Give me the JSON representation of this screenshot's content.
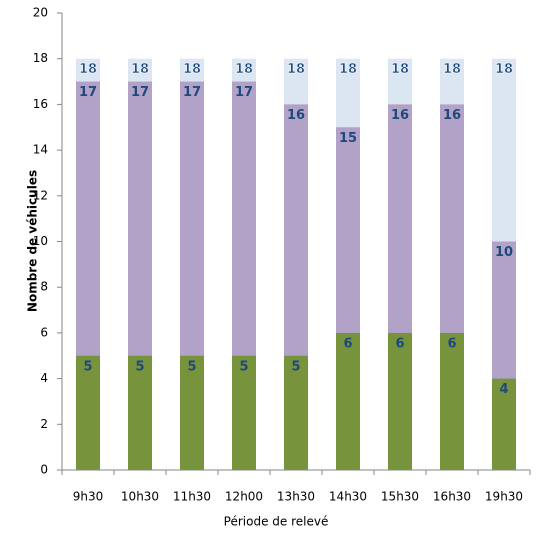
{
  "chart_data": {
    "type": "bar",
    "overlap": true,
    "x_label": "Période de relevé",
    "y_label": "Nombre de véhicules",
    "categories": [
      "9h30",
      "10h30",
      "11h30",
      "12h00",
      "13h30",
      "14h30",
      "15h30",
      "16h30",
      "19h30"
    ],
    "series": [
      {
        "color": "#dce6f2",
        "values": [
          18,
          18,
          18,
          18,
          18,
          18,
          18,
          18,
          18
        ]
      },
      {
        "color": "#b3a2c7",
        "values": [
          17,
          17,
          17,
          17,
          16,
          15,
          16,
          16,
          10
        ]
      },
      {
        "color": "#77933c",
        "values": [
          5,
          5,
          5,
          5,
          5,
          6,
          6,
          6,
          4
        ]
      }
    ],
    "ylim": [
      0,
      20
    ],
    "yticks": [
      0,
      2,
      4,
      6,
      8,
      10,
      12,
      14,
      16,
      18,
      20
    ],
    "grid": false
  }
}
